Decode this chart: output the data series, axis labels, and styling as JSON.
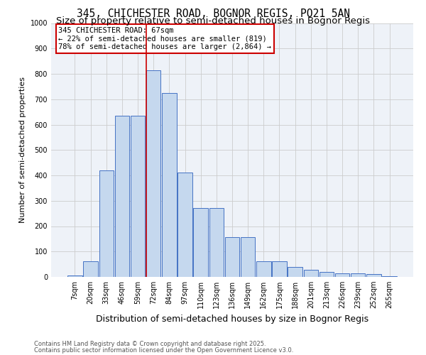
{
  "title1": "345, CHICHESTER ROAD, BOGNOR REGIS, PO21 5AN",
  "title2": "Size of property relative to semi-detached houses in Bognor Regis",
  "xlabel": "Distribution of semi-detached houses by size in Bognor Regis",
  "ylabel": "Number of semi-detached properties",
  "categories": [
    "7sqm",
    "20sqm",
    "33sqm",
    "46sqm",
    "59sqm",
    "72sqm",
    "84sqm",
    "97sqm",
    "110sqm",
    "123sqm",
    "136sqm",
    "149sqm",
    "162sqm",
    "175sqm",
    "188sqm",
    "201sqm",
    "213sqm",
    "226sqm",
    "239sqm",
    "252sqm",
    "265sqm"
  ],
  "values": [
    5,
    62,
    420,
    635,
    635,
    815,
    725,
    410,
    270,
    270,
    158,
    158,
    62,
    62,
    40,
    28,
    20,
    15,
    15,
    10,
    3
  ],
  "bar_color": "#c5d8ee",
  "bar_edge_color": "#4472c4",
  "property_line_color": "#cc0000",
  "annotation_text_line1": "345 CHICHESTER ROAD: 67sqm",
  "annotation_text_line2": "← 22% of semi-detached houses are smaller (819)",
  "annotation_text_line3": "78% of semi-detached houses are larger (2,864) →",
  "ylim": [
    0,
    1000
  ],
  "yticks": [
    0,
    100,
    200,
    300,
    400,
    500,
    600,
    700,
    800,
    900,
    1000
  ],
  "grid_color": "#cccccc",
  "background_color": "#eef2f8",
  "footnote1": "Contains HM Land Registry data © Crown copyright and database right 2025.",
  "footnote2": "Contains public sector information licensed under the Open Government Licence v3.0.",
  "title1_fontsize": 10.5,
  "title2_fontsize": 9.5,
  "annotation_fontsize": 7.5,
  "ylabel_fontsize": 8,
  "xlabel_fontsize": 9,
  "tick_fontsize": 7,
  "footnote_fontsize": 6
}
